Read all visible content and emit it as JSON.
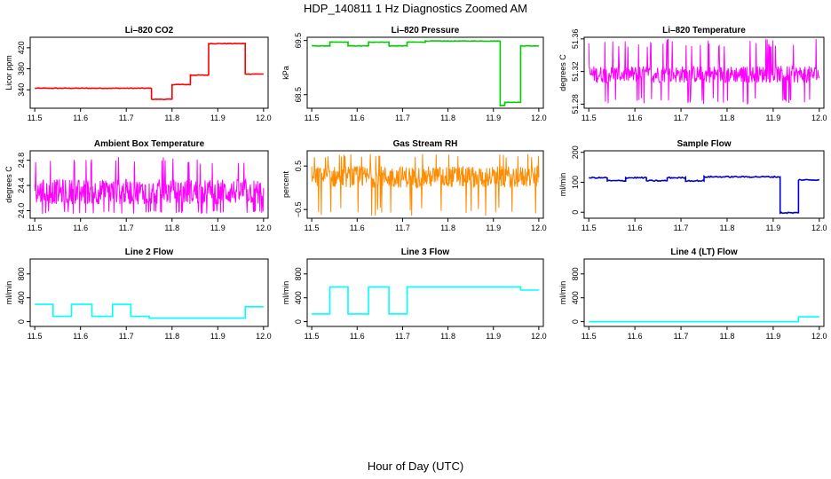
{
  "page": {
    "title": "HDP_140811  1 Hz Diagnostics Zoomed AM",
    "xlabel": "Hour of Day (UTC)"
  },
  "chart_data": [
    {
      "type": "line",
      "title": "Li–820 CO2",
      "ylabel": "Licor ppm",
      "color": "#ff0000",
      "noise": 0.6,
      "xlim": [
        11.49,
        12.01
      ],
      "ylim": [
        305,
        440
      ],
      "xticks": [
        "11.5",
        "11.6",
        "11.7",
        "11.8",
        "11.9",
        "12.0"
      ],
      "yticks": [
        {
          "v": 340,
          "label": "340"
        },
        {
          "v": 380,
          "label": "380"
        },
        {
          "v": 420,
          "label": "420"
        }
      ],
      "steps": [
        [
          11.5,
          11.755,
          343
        ],
        [
          11.755,
          11.8,
          322
        ],
        [
          11.8,
          11.84,
          350
        ],
        [
          11.84,
          11.88,
          368
        ],
        [
          11.88,
          11.96,
          428
        ],
        [
          11.96,
          12.0,
          370
        ]
      ]
    },
    {
      "type": "line",
      "title": "Li–820 Pressure",
      "ylabel": "kPa",
      "color": "#00cc00",
      "noise": 0.004,
      "xlim": [
        11.49,
        12.01
      ],
      "ylim": [
        68.25,
        69.56
      ],
      "xticks": [
        "11.5",
        "11.6",
        "11.7",
        "11.8",
        "11.9",
        "12.0"
      ],
      "yticks": [
        {
          "v": 68.5,
          "label": "68.5"
        },
        {
          "v": 69.5,
          "label": "69.5"
        }
      ],
      "steps": [
        [
          11.5,
          11.54,
          69.4
        ],
        [
          11.54,
          11.58,
          69.47
        ],
        [
          11.58,
          11.625,
          69.4
        ],
        [
          11.625,
          11.67,
          69.47
        ],
        [
          11.67,
          11.71,
          69.4
        ],
        [
          11.71,
          11.75,
          69.47
        ],
        [
          11.75,
          11.915,
          69.49
        ],
        [
          11.915,
          11.925,
          68.3
        ],
        [
          11.925,
          11.96,
          68.36
        ],
        [
          11.96,
          12.0,
          69.4
        ]
      ]
    },
    {
      "type": "line",
      "title": "Li–820 Temperature",
      "ylabel": "degrees C",
      "color": "#ff00ff",
      "noise": 0.0,
      "xlim": [
        11.49,
        12.01
      ],
      "ylim": [
        51.275,
        51.362
      ],
      "xticks": [
        "11.5",
        "11.6",
        "11.7",
        "11.8",
        "11.9",
        "12.0"
      ],
      "yticks": [
        {
          "v": 51.28,
          "label": "51.28"
        },
        {
          "v": 51.32,
          "label": "51.32"
        },
        {
          "v": 51.36,
          "label": "51.36"
        }
      ],
      "band": {
        "lo": 51.306,
        "hi": 51.327,
        "min": 51.28,
        "max": 51.36
      }
    },
    {
      "type": "line",
      "title": "Ambient Box Temperature",
      "ylabel": "degrees C",
      "color": "#ff00ff",
      "noise": 0.0,
      "xlim": [
        11.49,
        12.01
      ],
      "ylim": [
        23.88,
        24.95
      ],
      "xticks": [
        "11.5",
        "11.6",
        "11.7",
        "11.8",
        "11.9",
        "12.0"
      ],
      "yticks": [
        {
          "v": 24.0,
          "label": "24.0"
        },
        {
          "v": 24.4,
          "label": "24.4"
        },
        {
          "v": 24.8,
          "label": "24.8"
        }
      ],
      "band": {
        "lo": 24.1,
        "hi": 24.5,
        "min": 23.95,
        "max": 24.85
      }
    },
    {
      "type": "line",
      "title": "Gas Stream RH",
      "ylabel": "percent",
      "color": "#ff8c00",
      "noise": 0.0,
      "xlim": [
        11.49,
        12.01
      ],
      "ylim": [
        -0.7,
        0.85
      ],
      "xticks": [
        "11.5",
        "11.6",
        "11.7",
        "11.8",
        "11.9",
        "12.0"
      ],
      "yticks": [
        {
          "v": -0.5,
          "label": "−0.5"
        },
        {
          "v": 0.5,
          "label": "0.5"
        }
      ],
      "band": {
        "lo": 0.0,
        "hi": 0.5,
        "min": -0.65,
        "max": 0.78
      }
    },
    {
      "type": "line",
      "title": "Sample Flow",
      "ylabel": "ml/min",
      "color": "#0000cc",
      "noise": 2,
      "xlim": [
        11.49,
        12.01
      ],
      "ylim": [
        -20,
        205
      ],
      "xticks": [
        "11.5",
        "11.6",
        "11.7",
        "11.8",
        "11.9",
        "12.0"
      ],
      "yticks": [
        {
          "v": 0,
          "label": "0"
        },
        {
          "v": 100,
          "label": "100"
        },
        {
          "v": 200,
          "label": "200"
        }
      ],
      "steps": [
        [
          11.5,
          11.54,
          115
        ],
        [
          11.54,
          11.58,
          105
        ],
        [
          11.58,
          11.625,
          115
        ],
        [
          11.625,
          11.67,
          105
        ],
        [
          11.67,
          11.71,
          115
        ],
        [
          11.71,
          11.75,
          105
        ],
        [
          11.75,
          11.915,
          118
        ],
        [
          11.915,
          11.955,
          -2
        ],
        [
          11.955,
          12.0,
          108
        ]
      ]
    },
    {
      "type": "line",
      "title": "Line 2 Flow",
      "ylabel": "ml/min",
      "color": "#00ffff",
      "noise": 0,
      "xlim": [
        11.49,
        12.01
      ],
      "ylim": [
        -80,
        1050
      ],
      "xticks": [
        "11.5",
        "11.6",
        "11.7",
        "11.8",
        "11.9",
        "12.0"
      ],
      "yticks": [
        {
          "v": 0,
          "label": "0"
        },
        {
          "v": 400,
          "label": "400"
        },
        {
          "v": 800,
          "label": "800"
        }
      ],
      "steps": [
        [
          11.5,
          11.54,
          290
        ],
        [
          11.54,
          11.58,
          90
        ],
        [
          11.58,
          11.625,
          290
        ],
        [
          11.625,
          11.67,
          90
        ],
        [
          11.67,
          11.71,
          290
        ],
        [
          11.71,
          11.75,
          90
        ],
        [
          11.75,
          11.96,
          60
        ],
        [
          11.96,
          12.0,
          250
        ]
      ]
    },
    {
      "type": "line",
      "title": "Line 3 Flow",
      "ylabel": "ml/min",
      "color": "#00ffff",
      "noise": 0,
      "xlim": [
        11.49,
        12.01
      ],
      "ylim": [
        -80,
        1050
      ],
      "xticks": [
        "11.5",
        "11.6",
        "11.7",
        "11.8",
        "11.9",
        "12.0"
      ],
      "yticks": [
        {
          "v": 0,
          "label": "0"
        },
        {
          "v": 400,
          "label": "400"
        },
        {
          "v": 800,
          "label": "800"
        }
      ],
      "steps": [
        [
          11.5,
          11.54,
          130
        ],
        [
          11.54,
          11.58,
          580
        ],
        [
          11.58,
          11.625,
          130
        ],
        [
          11.625,
          11.67,
          580
        ],
        [
          11.67,
          11.71,
          130
        ],
        [
          11.71,
          11.96,
          580
        ],
        [
          11.96,
          12.0,
          530
        ]
      ]
    },
    {
      "type": "line",
      "title": "Line 4 (LT) Flow",
      "ylabel": "ml/min",
      "color": "#00ffff",
      "noise": 0,
      "xlim": [
        11.49,
        12.01
      ],
      "ylim": [
        -80,
        1050
      ],
      "xticks": [
        "11.5",
        "11.6",
        "11.7",
        "11.8",
        "11.9",
        "12.0"
      ],
      "yticks": [
        {
          "v": 0,
          "label": "0"
        },
        {
          "v": 400,
          "label": "400"
        },
        {
          "v": 800,
          "label": "800"
        }
      ],
      "steps": [
        [
          11.5,
          11.955,
          0
        ],
        [
          11.955,
          12.0,
          80
        ]
      ]
    }
  ]
}
